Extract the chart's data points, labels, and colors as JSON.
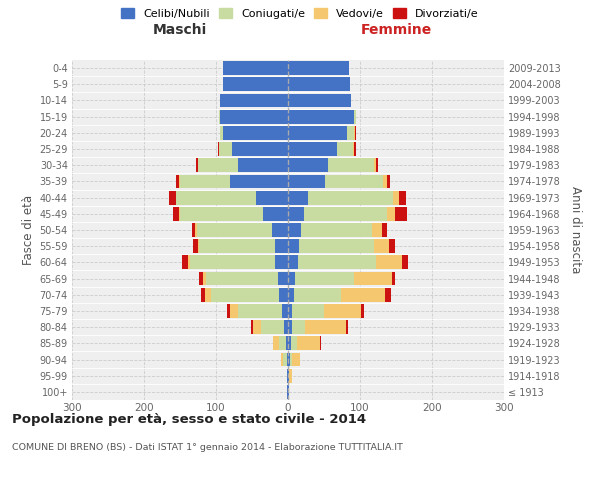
{
  "age_groups": [
    "100+",
    "95-99",
    "90-94",
    "85-89",
    "80-84",
    "75-79",
    "70-74",
    "65-69",
    "60-64",
    "55-59",
    "50-54",
    "45-49",
    "40-44",
    "35-39",
    "30-34",
    "25-29",
    "20-24",
    "15-19",
    "10-14",
    "5-9",
    "0-4"
  ],
  "birth_years": [
    "≤ 1913",
    "1914-1918",
    "1919-1923",
    "1924-1928",
    "1929-1933",
    "1934-1938",
    "1939-1943",
    "1944-1948",
    "1949-1953",
    "1954-1958",
    "1959-1963",
    "1964-1968",
    "1969-1973",
    "1974-1978",
    "1979-1983",
    "1984-1988",
    "1989-1993",
    "1994-1998",
    "1999-2003",
    "2004-2008",
    "2009-2013"
  ],
  "males": {
    "celibi": [
      1,
      1,
      2,
      3,
      5,
      8,
      12,
      14,
      18,
      18,
      22,
      35,
      45,
      80,
      70,
      78,
      90,
      95,
      95,
      90,
      90
    ],
    "coniugati": [
      0,
      1,
      5,
      10,
      32,
      62,
      95,
      100,
      118,
      105,
      105,
      115,
      110,
      70,
      55,
      18,
      5,
      1,
      0,
      0,
      0
    ],
    "vedovi": [
      0,
      0,
      3,
      8,
      12,
      10,
      8,
      4,
      3,
      2,
      2,
      2,
      1,
      1,
      0,
      0,
      0,
      0,
      0,
      0,
      0
    ],
    "divorziati": [
      0,
      0,
      0,
      0,
      2,
      5,
      6,
      5,
      8,
      7,
      5,
      8,
      9,
      5,
      3,
      1,
      0,
      0,
      0,
      0,
      0
    ]
  },
  "females": {
    "nubili": [
      1,
      1,
      3,
      4,
      5,
      5,
      8,
      10,
      14,
      15,
      18,
      22,
      28,
      52,
      55,
      68,
      82,
      92,
      88,
      86,
      85
    ],
    "coniugate": [
      0,
      1,
      3,
      8,
      18,
      45,
      65,
      82,
      108,
      105,
      98,
      115,
      118,
      80,
      65,
      22,
      10,
      2,
      0,
      0,
      0
    ],
    "vedove": [
      0,
      3,
      10,
      32,
      58,
      52,
      62,
      52,
      36,
      20,
      14,
      12,
      8,
      5,
      2,
      2,
      1,
      0,
      0,
      0,
      0
    ],
    "divorziate": [
      0,
      0,
      0,
      2,
      2,
      3,
      8,
      5,
      9,
      8,
      8,
      16,
      10,
      5,
      3,
      2,
      1,
      0,
      0,
      0,
      0
    ]
  },
  "colors": {
    "celibi_nubili": "#4472c4",
    "coniugati_e": "#c8dba0",
    "vedovi_e": "#f5c870",
    "divorziati_e": "#cc1111"
  },
  "xlim": 300,
  "title": "Popolazione per età, sesso e stato civile - 2014",
  "subtitle": "COMUNE DI BRENO (BS) - Dati ISTAT 1° gennaio 2014 - Elaborazione TUTTITALIA.IT",
  "ylabel_left": "Fasce di età",
  "ylabel_right": "Anni di nascita",
  "maschi_label": "Maschi",
  "femmine_label": "Femmine",
  "legend_labels": [
    "Celibi/Nubili",
    "Coniugati/e",
    "Vedovi/e",
    "Divorziati/e"
  ],
  "bg_color": "#efefef",
  "bar_height": 0.85
}
